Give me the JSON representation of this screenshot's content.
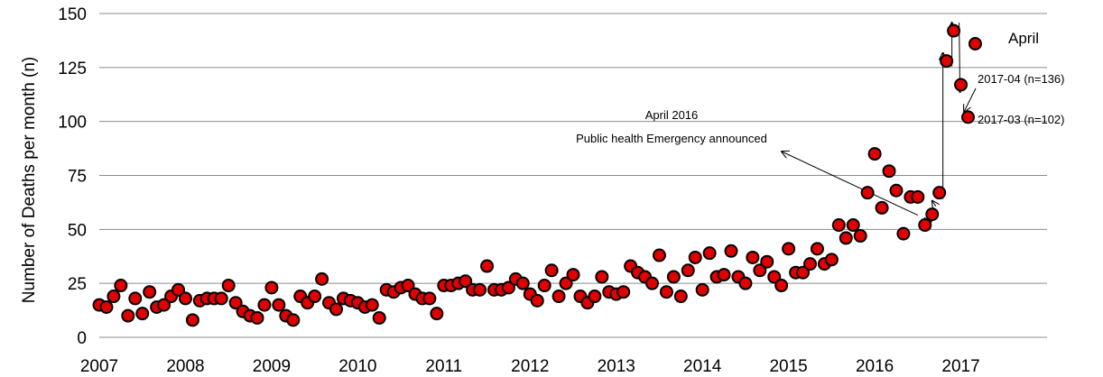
{
  "chart_data": {
    "type": "scatter",
    "ylabel": "Number of Deaths per month (n)",
    "xlabel": "",
    "ylim": [
      0,
      150
    ],
    "yticks": [
      0,
      25,
      50,
      75,
      100,
      125,
      150
    ],
    "xlim_month_index": [
      0,
      132
    ],
    "xticks": [
      {
        "label": "2007",
        "month_index": 0
      },
      {
        "label": "2008",
        "month_index": 12
      },
      {
        "label": "2009",
        "month_index": 24
      },
      {
        "label": "2010",
        "month_index": 36
      },
      {
        "label": "2011",
        "month_index": 48
      },
      {
        "label": "2012",
        "month_index": 60
      },
      {
        "label": "2013",
        "month_index": 72
      },
      {
        "label": "2014",
        "month_index": 84
      },
      {
        "label": "2015",
        "month_index": 96
      },
      {
        "label": "2016",
        "month_index": 108
      },
      {
        "label": "2017",
        "month_index": 120
      }
    ],
    "grid": "horizontal",
    "marker_fill": "#e00000",
    "marker_edge": "#000000",
    "series": [
      {
        "values": [
          15,
          14,
          19,
          24,
          10,
          18,
          11,
          21,
          14,
          15,
          19,
          22,
          18,
          8,
          17,
          18,
          18,
          18,
          24,
          16,
          12,
          10,
          9,
          15,
          23,
          15,
          10,
          8,
          19,
          16,
          19,
          27,
          16,
          13,
          18,
          17,
          16,
          14,
          15,
          9,
          22,
          21,
          23,
          24,
          20,
          18,
          18,
          11,
          24,
          24,
          25,
          26,
          22,
          22,
          33,
          22,
          22,
          23,
          27,
          25,
          20,
          17,
          24,
          31,
          19,
          25,
          29,
          19,
          16,
          19,
          28,
          21,
          20,
          21,
          33,
          30,
          28,
          25,
          38,
          21,
          28,
          19,
          31,
          37,
          22,
          39,
          28,
          29,
          40,
          28,
          25,
          37,
          31,
          35,
          28,
          24,
          41,
          30,
          30,
          34,
          41,
          34,
          36,
          52,
          46,
          52,
          47,
          67,
          85,
          60,
          77,
          68,
          48,
          65,
          65,
          52,
          57,
          67,
          128,
          142,
          117,
          102,
          136
        ]
      }
    ],
    "annotations": [
      {
        "id": "april2016_label",
        "lines": [
          "April 2016",
          "Public health Emergency announced"
        ]
      },
      {
        "id": "april_label",
        "text": "April"
      },
      {
        "id": "label_2017_04",
        "text": "2017-04 (n=136)"
      },
      {
        "id": "label_2017_03",
        "text": "2017-03 (n=102)"
      }
    ]
  }
}
